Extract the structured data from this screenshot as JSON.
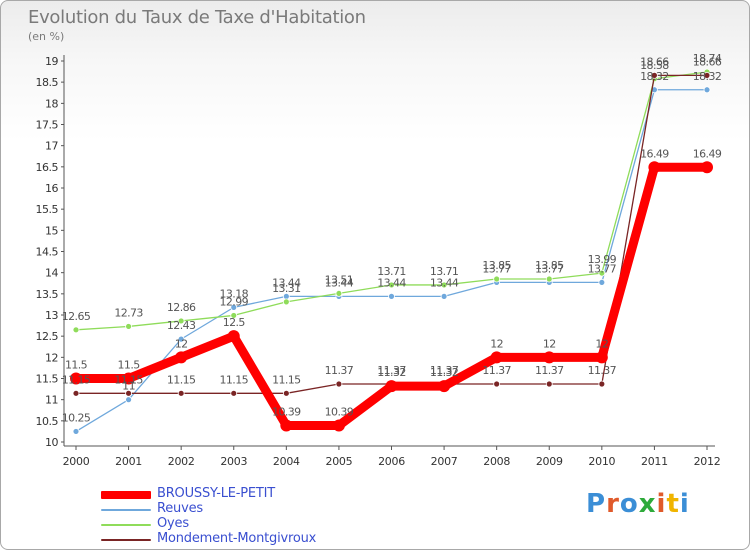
{
  "header": {
    "title": "Evolution du Taux de Taxe d'Habitation",
    "unit": "(en %)"
  },
  "brand": {
    "name": "Proxiti",
    "letter_colors": [
      "#3b8ed6",
      "#e05a2b",
      "#3b8ed6",
      "#2eaa3a",
      "#e05a2b",
      "#f0b400",
      "#3b8ed6"
    ]
  },
  "chart_data": {
    "type": "line",
    "title": "Evolution du Taux de Taxe d'Habitation",
    "ylabel": "(en %)",
    "xlabel": "",
    "x": [
      "2000",
      "2001",
      "2002",
      "2003",
      "2004",
      "2005",
      "2006",
      "2007",
      "2008",
      "2009",
      "2010",
      "2011",
      "2012"
    ],
    "ylim": [
      10,
      19
    ],
    "yticks": [
      "10",
      "10.5",
      "11",
      "11.5",
      "12",
      "12.5",
      "13",
      "13.5",
      "14",
      "14.5",
      "15",
      "15.5",
      "16",
      "16.5",
      "17",
      "17.5",
      "18",
      "18.5",
      "19"
    ],
    "grid": false,
    "legend_position": "bottom-left",
    "series": [
      {
        "name": "BROUSSY-LE-PETIT",
        "color": "#ff0000",
        "values": [
          11.5,
          11.5,
          12,
          12.5,
          10.39,
          10.39,
          11.32,
          11.32,
          12,
          12,
          12,
          16.49,
          16.49
        ],
        "labels": [
          "11.5",
          "11.5",
          "12",
          "12.5",
          "10.39",
          "10.39",
          "11.32",
          "11.32",
          "12",
          "12",
          "12",
          "16.49",
          "16.49"
        ]
      },
      {
        "name": "Reuves",
        "color": "#6fa8dc",
        "values": [
          10.25,
          11.0,
          12.43,
          13.18,
          13.44,
          13.44,
          13.44,
          13.44,
          13.77,
          13.77,
          13.77,
          18.32,
          18.32
        ],
        "labels": [
          "10.25",
          "11",
          "12.43",
          "13.18",
          "13.44",
          "13.44",
          "13.44",
          "13.44",
          "13.77",
          "13.77",
          "13.77",
          "18.32",
          "18.32"
        ]
      },
      {
        "name": "Oyes",
        "color": "#8fdc5a",
        "values": [
          12.65,
          12.73,
          12.86,
          12.99,
          13.31,
          13.51,
          13.71,
          13.71,
          13.85,
          13.85,
          13.99,
          18.58,
          18.74
        ],
        "labels": [
          "12.65",
          "12.73",
          "12.86",
          "12.99",
          "13.31",
          "13.51",
          "13.71",
          "13.71",
          "13.85",
          "13.85",
          "13.99",
          "18.58",
          "18.74"
        ]
      },
      {
        "name": "Mondement-Montgivroux",
        "color": "#7a2525",
        "values": [
          11.15,
          11.15,
          11.15,
          11.15,
          11.15,
          11.37,
          11.37,
          11.37,
          11.37,
          11.37,
          11.37,
          18.66,
          18.66
        ],
        "labels": [
          "11.15",
          "11.15",
          "11.15",
          "11.15",
          "11.15",
          "11.37",
          "11.37",
          "11.37",
          "11.37",
          "11.37",
          "11.37",
          "18.66",
          "18.66"
        ]
      }
    ]
  }
}
